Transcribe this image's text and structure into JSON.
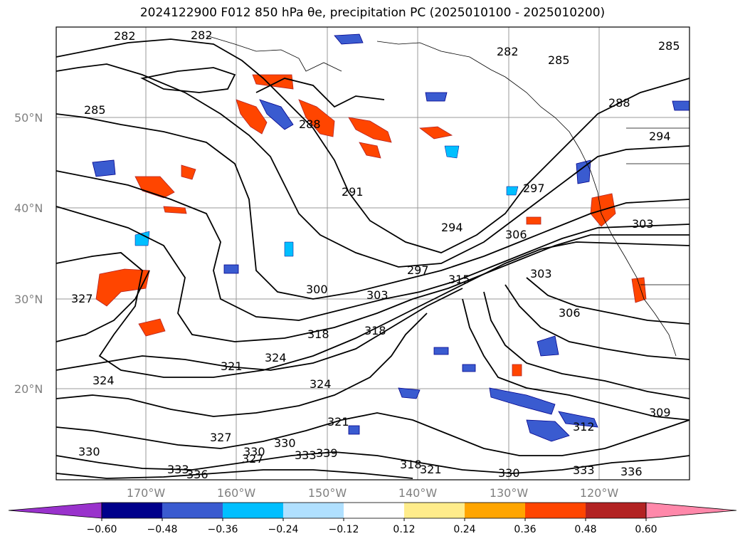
{
  "title": "2024122900 F012 850 hPa θe, precipitation PC (2025010100 - 2025010200)",
  "map": {
    "lat_labels": [
      "50°N",
      "40°N",
      "30°N",
      "20°N"
    ],
    "lon_labels": [
      "170°W",
      "160°W",
      "150°W",
      "140°W",
      "130°W",
      "120°W"
    ],
    "contour_labels": [
      "282",
      "282",
      "282",
      "285",
      "285",
      "285",
      "288",
      "288",
      "291",
      "294",
      "294",
      "297",
      "297",
      "300",
      "303",
      "303",
      "303",
      "306",
      "306",
      "309",
      "312",
      "315",
      "318",
      "318",
      "318",
      "321",
      "321",
      "321",
      "324",
      "324",
      "324",
      "327",
      "327",
      "327",
      "330",
      "330",
      "330",
      "330",
      "333",
      "333",
      "333",
      "336",
      "336",
      "339"
    ]
  },
  "colorbar": {
    "ticks": [
      "−0.60",
      "−0.48",
      "−0.36",
      "−0.24",
      "−0.12",
      "0.12",
      "0.24",
      "0.36",
      "0.48",
      "0.60"
    ],
    "colors": [
      "#9932cc",
      "#00008b",
      "#3a5bd0",
      "#00bfff",
      "#b0e0ff",
      "#ffffff",
      "#ffec8b",
      "#ffa500",
      "#ff4500",
      "#b22222",
      "#ff88aa"
    ]
  }
}
